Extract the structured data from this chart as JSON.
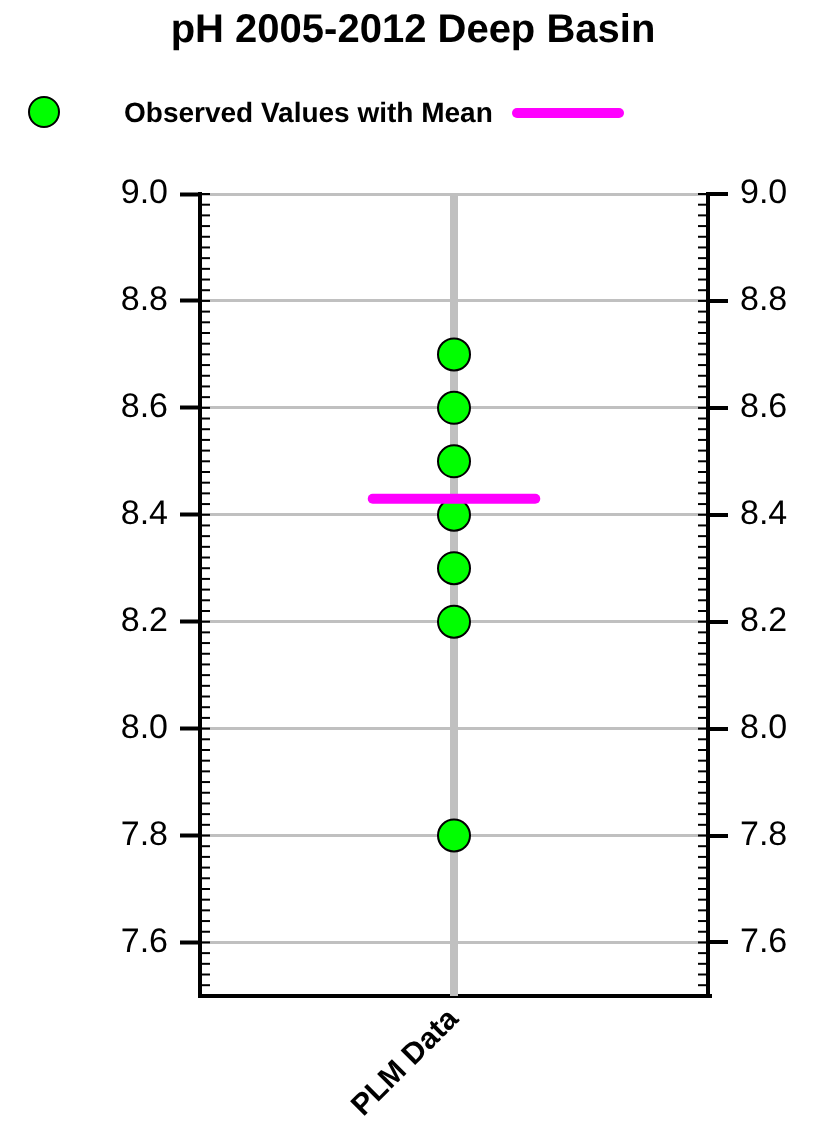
{
  "chart_data": {
    "type": "scatter",
    "title": "pH 2005-2012 Deep Basin",
    "categories": [
      "PLM Data"
    ],
    "series": [
      {
        "name": "Observed Values with Mean",
        "color": "#00ff00",
        "x": [
          "PLM Data",
          "PLM Data",
          "PLM Data",
          "PLM Data",
          "PLM Data",
          "PLM Data",
          "PLM Data"
        ],
        "values": [
          8.7,
          8.6,
          8.5,
          8.4,
          8.3,
          8.2,
          7.8
        ]
      }
    ],
    "ref_lines": [
      {
        "axis": "y",
        "value": 8.43,
        "color": "#ff00ff"
      },
      {
        "axis": "x",
        "value": "PLM Data",
        "color": "#c0c0c0"
      }
    ],
    "ylim": [
      7.5,
      9.0
    ],
    "yticks": [
      {
        "value": 7.6,
        "label": "7.6"
      },
      {
        "value": 7.8,
        "label": "7.8"
      },
      {
        "value": 8,
        "label": "8.0"
      },
      {
        "value": 8.2,
        "label": "8.2"
      },
      {
        "value": 8.4,
        "label": "8.4"
      },
      {
        "value": 8.6,
        "label": "8.6"
      },
      {
        "value": 8.8,
        "label": "8.8"
      },
      {
        "value": 9,
        "label": "9.0"
      }
    ],
    "y2lim": [
      7.5,
      9.0
    ],
    "y2ticks": [
      {
        "value": 7.6,
        "label": "7.6"
      },
      {
        "value": 7.8,
        "label": "7.8"
      },
      {
        "value": 8,
        "label": "8.0"
      },
      {
        "value": 8.2,
        "label": "8.2"
      },
      {
        "value": 8.4,
        "label": "8.4"
      },
      {
        "value": 8.6,
        "label": "8.6"
      },
      {
        "value": 8.8,
        "label": "8.8"
      },
      {
        "value": 9,
        "label": "9.0"
      }
    ],
    "grid": "y",
    "legend": "top",
    "marker": "circle"
  }
}
